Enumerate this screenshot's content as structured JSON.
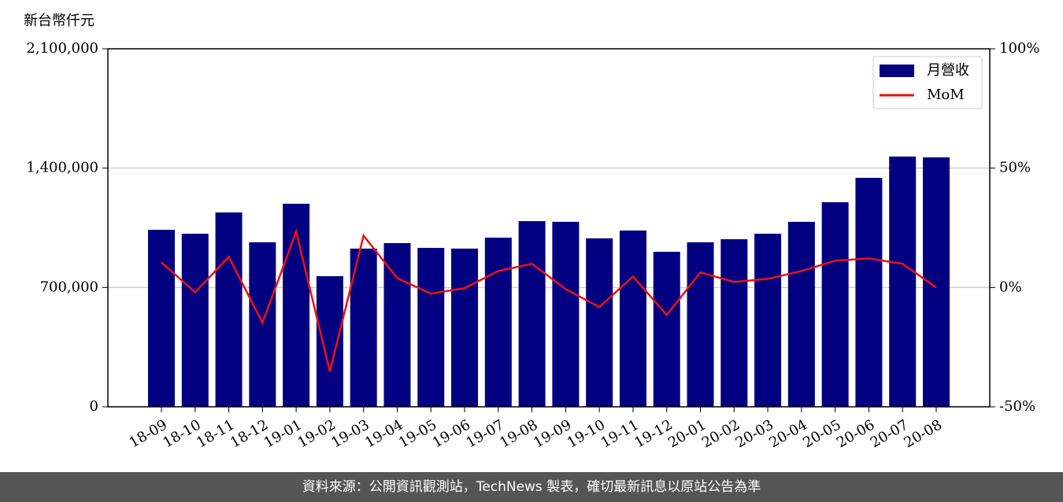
{
  "chart_data": {
    "type": "bar",
    "y_label": "新台幣仟元",
    "categories": [
      "18-09",
      "18-10",
      "18-11",
      "18-12",
      "19-01",
      "19-02",
      "19-03",
      "19-04",
      "19-05",
      "19-06",
      "19-07",
      "19-08",
      "19-09",
      "19-10",
      "19-11",
      "19-12",
      "20-01",
      "20-02",
      "20-03",
      "20-04",
      "20-05",
      "20-06",
      "20-07",
      "20-08"
    ],
    "series": [
      {
        "name": "月營收",
        "type": "bar",
        "color": "#000080",
        "values": [
          1038000,
          1015000,
          1140000,
          965000,
          1191000,
          766000,
          928000,
          960000,
          932000,
          928000,
          992000,
          1089000,
          1085000,
          988000,
          1034000,
          909000,
          965000,
          983000,
          1015000,
          1085000,
          1200000,
          1343000,
          1468000,
          1463000
        ]
      },
      {
        "name": "MoM",
        "type": "line",
        "axis": "y2",
        "color": "#ee1111",
        "values": [
          10.5,
          -2,
          12.8,
          -14.8,
          23.4,
          -35.2,
          21.7,
          3.9,
          -2.6,
          -0.3,
          6.9,
          9.9,
          -0.7,
          -8.2,
          4.6,
          -11.5,
          6.3,
          2.3,
          3.6,
          6.9,
          11.2,
          12.2,
          9.9,
          0
        ]
      }
    ],
    "ylim": [
      0,
      2100000
    ],
    "yticks": [
      0,
      {
        "value": 700000,
        "label": "700,000"
      },
      {
        "value": 1400000,
        "label": "1,400,000"
      },
      {
        "value": 2100000,
        "label": "2,100,000"
      }
    ],
    "y2lim": [
      -50,
      100
    ],
    "y2ticks": [
      {
        "value": -50,
        "label": "-50%"
      },
      {
        "value": 0,
        "label": "0%"
      },
      {
        "value": 50,
        "label": "50%"
      },
      {
        "value": 100,
        "label": "100%"
      }
    ],
    "grid": true,
    "legend": "upper right"
  },
  "footer": "資料來源：公開資訊觀測站，TechNews 製表，確切最新訊息以原站公告為準"
}
